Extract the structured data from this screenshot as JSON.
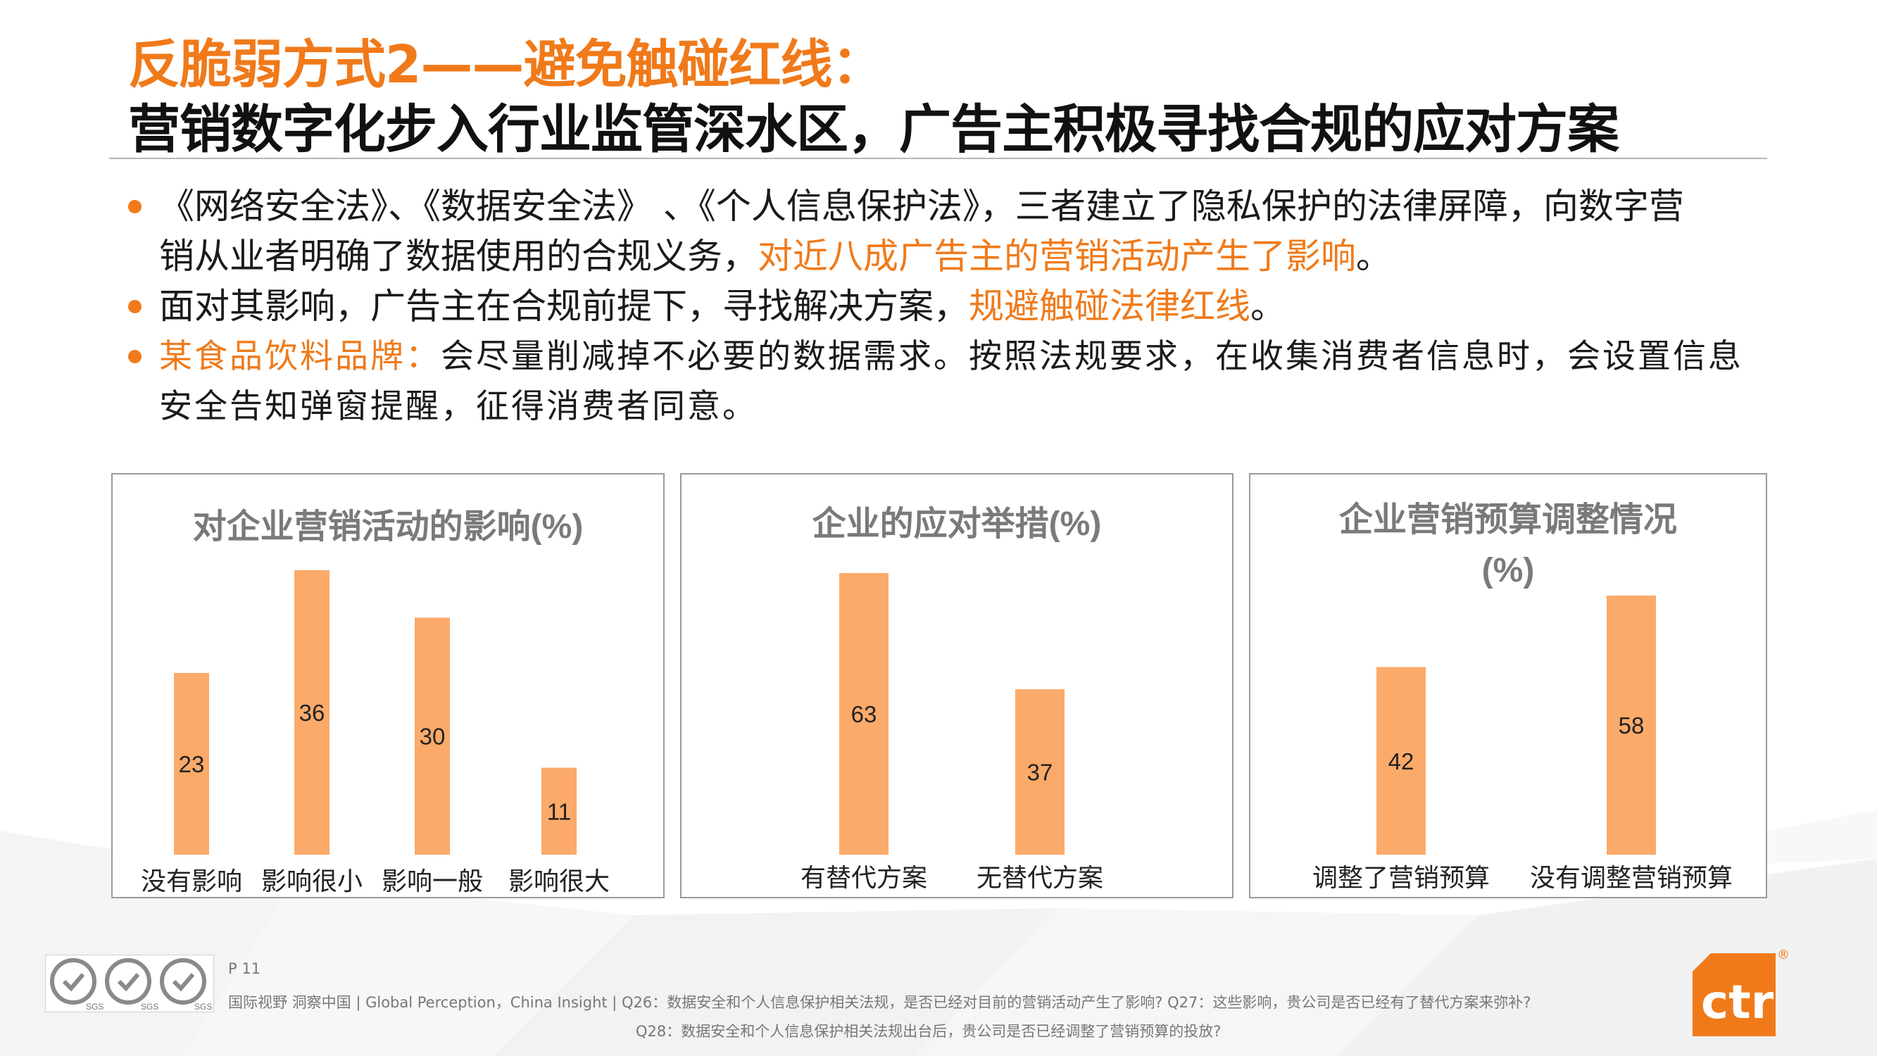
{
  "header": {
    "title_line1": "反脆弱方式2——避免触碰红线：",
    "title_line2": "营销数字化步入行业监管深水区，广告主积极寻找合规的应对方案"
  },
  "bullets": [
    {
      "text_line1": "《网络安全法》、《数据安全法》 、《个人信息保护法》，三者建立了隐私保护的法律屏障，向数字营",
      "text_line2_plain": "销从业者明确了数据使用的合规义务，",
      "text_line2_highlight": "对近八成广告主的营销活动产生了影响",
      "text_line2_end": "。"
    },
    {
      "text_plain": "面对其影响，广告主在合规前提下，寻找解决方案，",
      "text_highlight": "规避触碰法律红线",
      "text_end": "。"
    },
    {
      "label": "某食品饮料品牌：",
      "text_line1": "会尽量削减掉不必要的数据需求。按照法规要求，在收集消费者信息时，会设置信息",
      "text_line2": "安全告知弹窗提醒，征得消费者同意。"
    }
  ],
  "colors": {
    "accent": "#f07a1a",
    "bar": "#fbaa6a",
    "panel_border": "#9a9a9a"
  },
  "chart_data": [
    {
      "type": "bar",
      "title": "对企业营销活动的影响(%)",
      "categories": [
        "没有影响",
        "影响很小",
        "影响一般",
        "影响很大"
      ],
      "values": [
        23,
        36,
        30,
        11
      ],
      "ylim": [
        0,
        36
      ]
    },
    {
      "type": "bar",
      "title": "企业的应对举措(%)",
      "categories": [
        "有替代方案",
        "无替代方案"
      ],
      "values": [
        63,
        37
      ],
      "ylim": [
        0,
        63
      ]
    },
    {
      "type": "bar",
      "title": "企业营销预算调整情况",
      "subtitle": "(%)",
      "categories": [
        "调整了营销预算",
        "没有调整营销预算"
      ],
      "values": [
        42,
        58
      ],
      "ylim": [
        0,
        58
      ]
    }
  ],
  "footer": {
    "page": "P 11",
    "source_line1": "国际视野 洞察中国 | Global Perception，China Insight | Q26：数据安全和个人信息保护相关法规，是否已经对目前的营销活动产生了影响? Q27：这些影响，贵公司是否已经有了替代方案来弥补?",
    "source_line2": "Q28：数据安全和个人信息保护相关法规出台后，贵公司是否已经调整了营销预算的投放?",
    "badge_text": "SGS",
    "logo_text": "ctr",
    "logo_mark": "®"
  }
}
